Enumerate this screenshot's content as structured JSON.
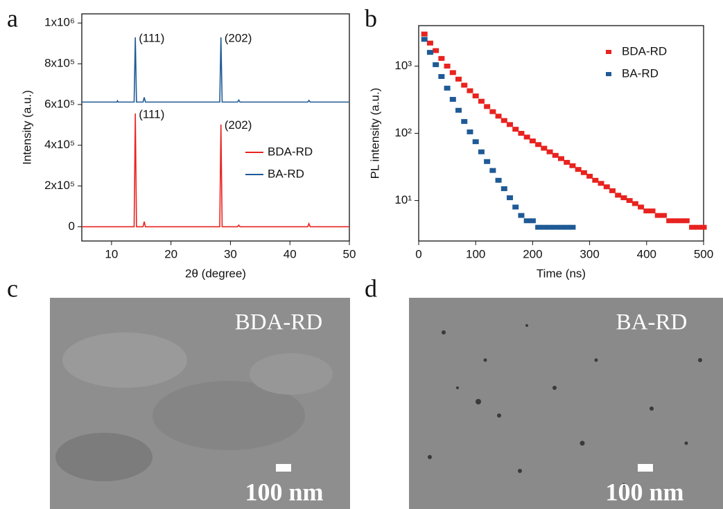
{
  "panel_labels": [
    "a",
    "b",
    "c",
    "d"
  ],
  "images": [
    {
      "caption": "BDA-RD",
      "scale_bar": "100 nm"
    },
    {
      "caption": "BA-RD",
      "scale_bar": "100 nm"
    }
  ],
  "chart_data": [
    {
      "type": "line",
      "xlabel": "2θ (degree)",
      "ylabel": "Intensity (a.u.)",
      "xlim": [
        5,
        50
      ],
      "xticks": [
        10,
        20,
        30,
        40,
        50
      ],
      "ylim": [
        -70000,
        1045000
      ],
      "yticks": [
        0,
        {
          "value": 200000,
          "label": "2x10⁵"
        },
        {
          "value": 400000,
          "label": "4x10⁵"
        },
        {
          "value": 600000,
          "label": "6x10⁵"
        },
        {
          "value": 800000,
          "label": "8x10⁵"
        },
        {
          "value": 1000000,
          "label": "1x10⁶"
        }
      ],
      "legend": "center right",
      "series": [
        {
          "name": "BDA-RD",
          "color": "#e8231f",
          "x": [
            5,
            13.8,
            14.0,
            14.2,
            15.3,
            15.5,
            15.7,
            28.2,
            28.4,
            28.6,
            31.2,
            31.4,
            31.6,
            43.0,
            43.2,
            43.4,
            50
          ],
          "values": [
            0,
            0,
            556000,
            0,
            0,
            25000,
            0,
            0,
            502000,
            0,
            0,
            8000,
            0,
            0,
            15000,
            0,
            0
          ]
        },
        {
          "name": "BA-RD",
          "color": "#1f5a96",
          "x": [
            5,
            10.9,
            11.0,
            11.1,
            13.8,
            14.0,
            14.2,
            15.3,
            15.5,
            15.7,
            28.2,
            28.4,
            28.6,
            31.2,
            31.4,
            31.6,
            43.0,
            43.2,
            43.4,
            50
          ],
          "values": [
            612000,
            612000,
            618000,
            612000,
            612000,
            930000,
            612000,
            612000,
            635000,
            612000,
            612000,
            930000,
            612000,
            612000,
            622000,
            612000,
            612000,
            620000,
            612000,
            612000
          ]
        }
      ],
      "annotations": [
        {
          "text": "(111)",
          "x": 14.0,
          "y": 930000
        },
        {
          "text": "(202)",
          "x": 28.4,
          "y": 930000
        },
        {
          "text": "(111)",
          "x": 14.0,
          "y": 556000
        },
        {
          "text": "(202)",
          "x": 28.4,
          "y": 502000
        }
      ]
    },
    {
      "type": "scatter",
      "xlabel": "Time (ns)",
      "ylabel": "PL intensity (a.u.)",
      "xlim": [
        0,
        500
      ],
      "xticks": [
        0,
        100,
        200,
        300,
        400,
        500
      ],
      "ylim": [
        2.5,
        4000
      ],
      "log_y": true,
      "yticks": [
        {
          "value": 10,
          "label": "10¹"
        },
        {
          "value": 100,
          "label": "10²"
        },
        {
          "value": 1000,
          "label": "10³"
        }
      ],
      "legend": "upper right",
      "series": [
        {
          "name": "BDA-RD",
          "color": "#e8231f",
          "x": [
            10,
            20,
            30,
            40,
            50,
            60,
            70,
            80,
            90,
            100,
            110,
            120,
            130,
            140,
            150,
            160,
            170,
            180,
            190,
            200,
            210,
            220,
            230,
            240,
            250,
            260,
            270,
            280,
            290,
            300,
            310,
            320,
            330,
            340,
            350,
            360,
            370,
            380,
            390,
            400,
            410,
            420,
            430,
            440,
            450,
            460,
            470,
            480,
            490,
            500
          ],
          "values": [
            3000,
            2200,
            1700,
            1300,
            1000,
            800,
            640,
            520,
            430,
            360,
            300,
            250,
            210,
            180,
            155,
            135,
            115,
            100,
            88,
            77,
            68,
            60,
            53,
            47,
            42,
            37,
            33,
            29,
            26,
            23,
            20,
            18,
            16,
            14,
            12,
            11,
            10,
            9,
            8,
            7,
            7,
            6,
            6,
            5,
            5,
            5,
            5,
            4,
            4,
            4
          ]
        },
        {
          "name": "BA-RD",
          "color": "#1f5a96",
          "x": [
            10,
            20,
            30,
            40,
            50,
            60,
            70,
            80,
            90,
            100,
            110,
            120,
            130,
            140,
            150,
            160,
            170,
            180,
            190,
            200,
            210,
            220,
            230,
            240,
            250,
            260,
            270
          ],
          "values": [
            2500,
            1600,
            1050,
            700,
            470,
            320,
            220,
            150,
            105,
            75,
            53,
            38,
            28,
            20,
            15,
            11,
            8,
            6,
            5,
            5,
            4,
            4,
            4,
            4,
            4,
            4,
            4
          ]
        }
      ]
    }
  ]
}
